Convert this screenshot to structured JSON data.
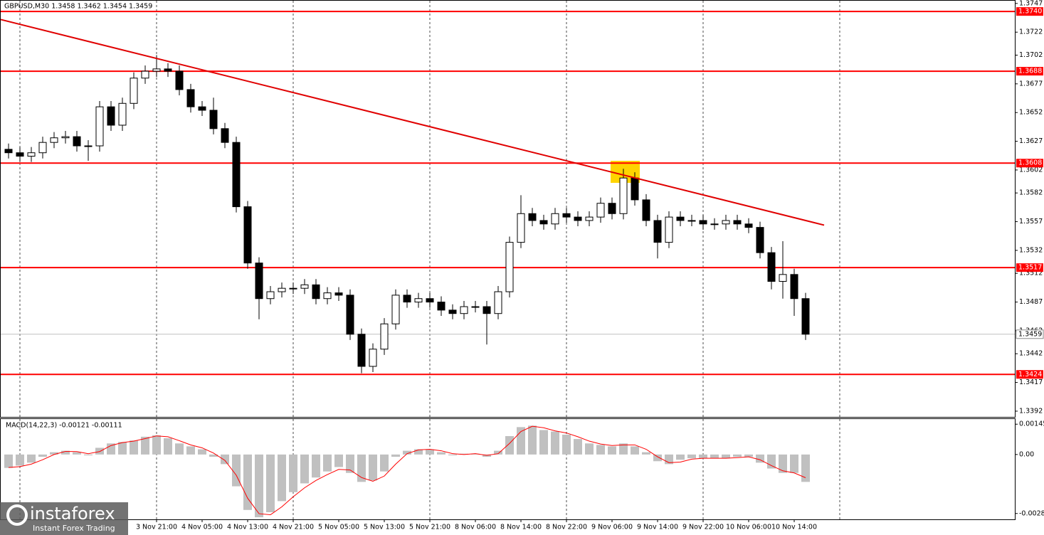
{
  "chart_data": {
    "type": "candlestick",
    "title": "GBPUSD,M30  1.3458 1.3462 1.3454 1.3459",
    "categories": [
      null,
      null,
      null,
      null,
      null,
      null,
      null,
      null,
      null,
      null,
      null,
      null,
      null,
      "3 Nov 21:00",
      null,
      null,
      null,
      "4 Nov 05:00",
      null,
      null,
      null,
      "4 Nov 13:00",
      null,
      null,
      null,
      "4 Nov 21:00",
      null,
      null,
      null,
      "5 Nov 05:00",
      null,
      null,
      null,
      "5 Nov 13:00",
      null,
      null,
      null,
      "5 Nov 21:00",
      null,
      null,
      null,
      "8 Nov 06:00",
      null,
      null,
      null,
      "8 Nov 14:00",
      null,
      null,
      null,
      "8 Nov 22:00",
      null,
      null,
      null,
      "9 Nov 06:00",
      null,
      null,
      null,
      "9 Nov 14:00",
      null,
      null,
      null,
      "9 Nov 22:00",
      null,
      null,
      null,
      "10 Nov 06:00",
      null,
      null,
      null,
      "10 Nov 14:00",
      null
    ],
    "open": [
      1.362,
      1.3617,
      1.3614,
      1.3617,
      1.3626,
      1.363,
      1.3631,
      1.3623,
      1.3623,
      1.3657,
      1.3641,
      1.366,
      1.3682,
      1.3688,
      1.369,
      1.3688,
      1.3672,
      1.3657,
      1.3654,
      1.3638,
      1.3626,
      1.357,
      1.3521,
      1.349,
      1.3496,
      1.3499,
      1.3499,
      1.3502,
      1.349,
      1.3495,
      1.3493,
      1.3459,
      1.3431,
      1.3446,
      1.3468,
      1.3493,
      1.3487,
      1.349,
      1.3487,
      1.348,
      1.3477,
      1.3483,
      1.3483,
      1.3477,
      1.3496,
      1.3539,
      1.3564,
      1.3558,
      1.3555,
      1.3564,
      1.3561,
      1.3558,
      1.3561,
      1.3573,
      1.3564,
      1.3595,
      1.3576,
      1.3558,
      1.3539,
      1.3561,
      1.3558,
      1.3558,
      1.3555,
      1.3555,
      1.3558,
      1.3555,
      1.3552,
      1.353,
      1.3505,
      1.3511,
      1.349
    ],
    "high": [
      1.3625,
      1.3622,
      1.3622,
      1.3631,
      1.3635,
      1.3636,
      1.3636,
      1.3628,
      1.3662,
      1.3662,
      1.3665,
      1.3687,
      1.3693,
      1.3702,
      1.3695,
      1.3693,
      1.3677,
      1.3662,
      1.3665,
      1.3643,
      1.3631,
      1.3575,
      1.3526,
      1.3501,
      1.3504,
      1.3504,
      1.3507,
      1.3507,
      1.35,
      1.35,
      1.3498,
      1.3464,
      1.3451,
      1.3473,
      1.3498,
      1.3498,
      1.3495,
      1.3495,
      1.3492,
      1.3485,
      1.3488,
      1.3488,
      1.3488,
      1.3501,
      1.3544,
      1.358,
      1.3569,
      1.3563,
      1.3569,
      1.3569,
      1.3566,
      1.3566,
      1.3578,
      1.3578,
      1.3603,
      1.36,
      1.3581,
      1.3563,
      1.3566,
      1.3566,
      1.3563,
      1.3563,
      1.356,
      1.3563,
      1.3563,
      1.356,
      1.3557,
      1.3535,
      1.354,
      1.3516,
      1.3495
    ],
    "low": [
      1.3612,
      1.3609,
      1.3609,
      1.3612,
      1.3621,
      1.3625,
      1.3618,
      1.361,
      1.3618,
      1.3636,
      1.3636,
      1.3655,
      1.3677,
      1.3683,
      1.3683,
      1.3667,
      1.3652,
      1.3649,
      1.3633,
      1.3621,
      1.3565,
      1.3516,
      1.3472,
      1.3485,
      1.3491,
      1.3494,
      1.3494,
      1.3485,
      1.3485,
      1.3488,
      1.3454,
      1.3425,
      1.3426,
      1.3441,
      1.3463,
      1.3482,
      1.3482,
      1.3482,
      1.3475,
      1.3472,
      1.3472,
      1.3478,
      1.345,
      1.3472,
      1.3491,
      1.3534,
      1.3553,
      1.355,
      1.355,
      1.3556,
      1.3553,
      1.3553,
      1.3556,
      1.3559,
      1.3559,
      1.3571,
      1.3553,
      1.3525,
      1.3534,
      1.3553,
      1.3553,
      1.355,
      1.355,
      1.355,
      1.355,
      1.3547,
      1.3525,
      1.3498,
      1.349,
      1.3475,
      1.3454
    ],
    "close": [
      1.3617,
      1.3614,
      1.3617,
      1.3626,
      1.363,
      1.3631,
      1.3623,
      1.3623,
      1.3657,
      1.3641,
      1.366,
      1.3682,
      1.3688,
      1.369,
      1.3688,
      1.3672,
      1.3657,
      1.3654,
      1.3638,
      1.3626,
      1.357,
      1.3521,
      1.349,
      1.3496,
      1.3499,
      1.3499,
      1.3502,
      1.349,
      1.3495,
      1.3493,
      1.3459,
      1.3431,
      1.3446,
      1.3468,
      1.3493,
      1.3487,
      1.349,
      1.3487,
      1.348,
      1.3477,
      1.3483,
      1.3483,
      1.3477,
      1.3496,
      1.3539,
      1.3564,
      1.3558,
      1.3555,
      1.3564,
      1.3561,
      1.3558,
      1.3561,
      1.3573,
      1.3564,
      1.3595,
      1.3576,
      1.3558,
      1.3539,
      1.3561,
      1.3558,
      1.3558,
      1.3555,
      1.3555,
      1.3558,
      1.3555,
      1.3552,
      1.353,
      1.3505,
      1.3511,
      1.349,
      1.3459
    ],
    "color": "#000000",
    "ylim": [
      1.3387,
      1.375
    ],
    "yticks": [
      1.3747,
      1.3722,
      1.3702,
      1.3677,
      1.3652,
      1.3627,
      1.3602,
      1.3582,
      1.3557,
      1.3532,
      1.3512,
      1.3487,
      1.3462,
      1.3442,
      1.3417,
      1.3392
    ],
    "levels": [
      {
        "value": 1.374,
        "label": "1.3740"
      },
      1.3688,
      1.3608,
      1.3517,
      1.3424
    ],
    "level_color": "#ff0000",
    "current_price": 1.3459,
    "trendline": {
      "color": "#e00000",
      "values": [
        1.3733,
        1.3554
      ]
    },
    "grid": true,
    "indicator": {
      "type": "macd",
      "title": "MACD(14,22,3) -0.00121 -0.00111",
      "histogram": [
        -0.00064,
        -0.00053,
        -0.00039,
        -0.00011,
        0.00011,
        0.00018,
        0.00011,
        -4e-05,
        0.00032,
        0.00053,
        0.0006,
        0.00067,
        0.00085,
        0.00092,
        0.00078,
        0.00053,
        0.00039,
        0.00025,
        -0.00011,
        -0.00046,
        -0.00152,
        -0.00265,
        -0.003,
        -0.00276,
        -0.00223,
        -0.0018,
        -0.00138,
        -0.0011,
        -0.00081,
        -0.0006,
        -0.00088,
        -0.00131,
        -0.00124,
        -0.00081,
        -0.00011,
        0.00018,
        0.00025,
        0.00025,
        0.00011,
        -4e-05,
        4e-05,
        4e-05,
        -0.00011,
        0.00018,
        0.00088,
        0.00131,
        0.00138,
        0.00117,
        0.0011,
        0.00095,
        0.00074,
        0.00053,
        0.00046,
        0.00039,
        0.00053,
        0.00039,
        0.00011,
        -0.00032,
        -0.00046,
        -0.00025,
        -0.00018,
        -0.00018,
        -0.00018,
        -0.00018,
        -0.00011,
        -0.00011,
        -0.00039,
        -0.00067,
        -0.00088,
        -0.00088,
        -0.00131
      ],
      "signal": [
        -0.00062,
        -0.00058,
        -0.00046,
        -0.00025,
        0.0,
        0.00015,
        0.00014,
        4e-05,
        0.00014,
        0.00043,
        0.00057,
        0.00064,
        0.00076,
        0.00089,
        0.00085,
        0.00066,
        0.00046,
        0.00032,
        7e-05,
        -0.00028,
        -0.00099,
        -0.00209,
        -0.00283,
        -0.00288,
        -0.0025,
        -0.00202,
        -0.00159,
        -0.00124,
        -0.00096,
        -0.00071,
        -0.00074,
        -0.0011,
        -0.00128,
        -0.00103,
        -0.00046,
        4e-05,
        0.00022,
        0.00025,
        0.00018,
        4e-05,
        0.0,
        4e-05,
        -4e-05,
        4e-05,
        0.00053,
        0.0011,
        0.00135,
        0.00128,
        0.00113,
        0.00103,
        0.00085,
        0.00064,
        0.0005,
        0.00043,
        0.00046,
        0.00046,
        0.00025,
        -0.00011,
        -0.00039,
        -0.00036,
        -0.00022,
        -0.00018,
        -0.00018,
        -0.00018,
        -0.00015,
        -0.00011,
        -0.00025,
        -0.00053,
        -0.00078,
        -0.00088,
        -0.00111
      ],
      "histogram_color": "#c0c0c0",
      "signal_color": "#ff0000",
      "ylim": [
        -0.0031,
        0.00173
      ],
      "yticks": [
        0.00145,
        {
          "value": 0,
          "label": "0.00"
        },
        -0.00282
      ]
    }
  },
  "logo": {
    "name": "instaforex",
    "tagline": "Instant Forex Trading"
  }
}
